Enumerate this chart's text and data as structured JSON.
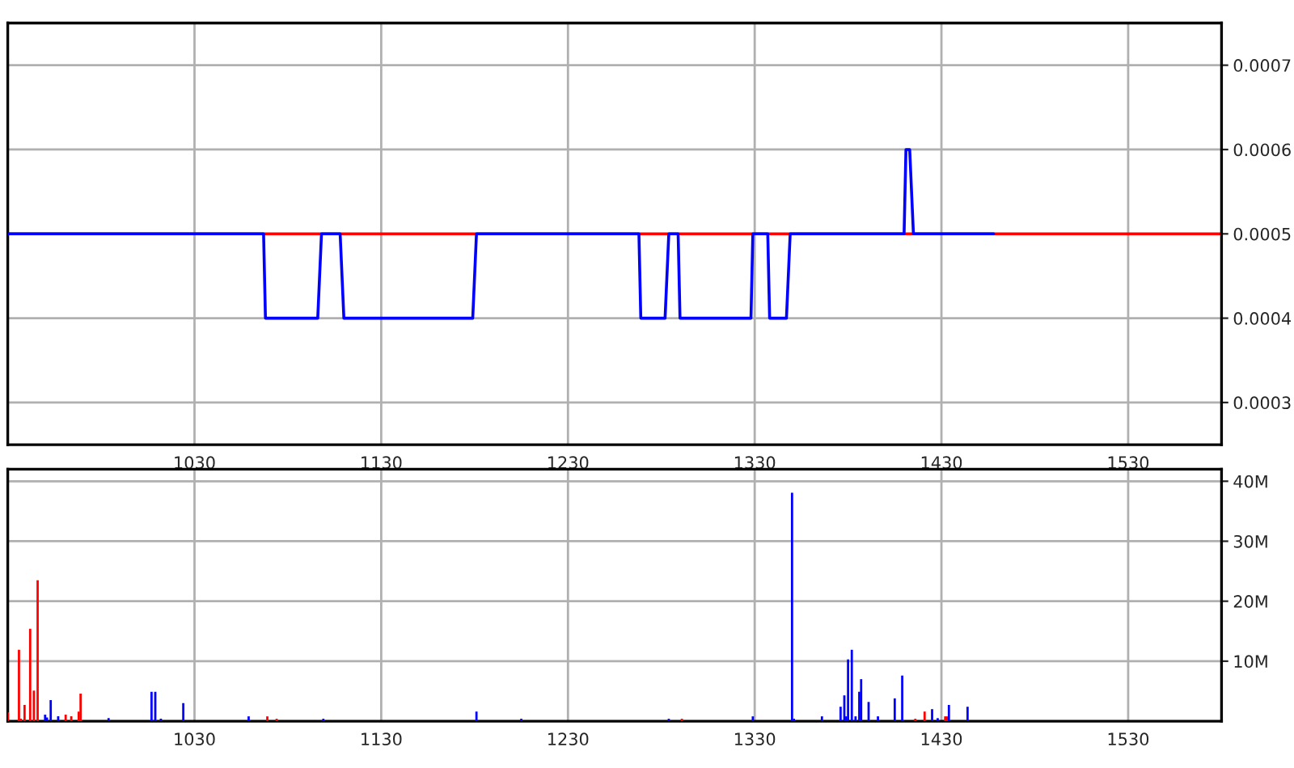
{
  "chart_data": [
    {
      "type": "line",
      "x": [
        930,
        1067,
        1068,
        1096,
        1098,
        1108,
        1110,
        1179,
        1181,
        1268,
        1269,
        1282,
        1284,
        1289,
        1290,
        1328,
        1329,
        1337,
        1338,
        1347,
        1349,
        1410,
        1411,
        1413,
        1415,
        1458
      ],
      "series": [
        {
          "color": "#0000ff",
          "values": [
            0.0005,
            0.0005,
            0.0004,
            0.0004,
            0.0005,
            0.0005,
            0.0004,
            0.0004,
            0.0005,
            0.0005,
            0.0004,
            0.0004,
            0.0005,
            0.0005,
            0.0004,
            0.0004,
            0.0005,
            0.0005,
            0.0004,
            0.0004,
            0.0005,
            0.0005,
            0.0006,
            0.0006,
            0.0005,
            0.0005
          ]
        }
      ],
      "xlim": [
        930,
        1580
      ],
      "xticks": [
        1030,
        1130,
        1230,
        1330,
        1430,
        1530
      ],
      "ylim": [
        0.00025,
        0.00075
      ],
      "yticks": [
        0.0003,
        0.0004,
        0.0005,
        0.0006,
        0.0007
      ],
      "ref_lines": [
        {
          "axis": "y",
          "value": 0.0005,
          "color": "#ff0000"
        }
      ],
      "grid": true
    },
    {
      "type": "bar",
      "series": [
        {
          "color": "#ff0000",
          "x": [
            930,
            936,
            937,
            939,
            942,
            944,
            946,
            961,
            964,
            968,
            969,
            1069,
            1074,
            1291,
            1416,
            1421,
            1432,
            1433
          ],
          "values": [
            1500000.0,
            11900000.0,
            400000.0,
            2700000.0,
            15400000.0,
            5100000.0,
            23500000.0,
            1100000.0,
            800000.0,
            1600000.0,
            4600000.0,
            800000.0,
            400000.0,
            400000.0,
            400000.0,
            1600000.0,
            800000.0,
            800000.0
          ]
        },
        {
          "color": "#0000ff",
          "x": [
            950,
            951,
            953,
            957,
            984,
            1007,
            1009,
            1012,
            1024,
            1059,
            1099,
            1181,
            1205,
            1284,
            1329,
            1350,
            1351,
            1366,
            1376,
            1378,
            1379,
            1380,
            1382,
            1384,
            1386,
            1387,
            1391,
            1396,
            1405,
            1409,
            1425,
            1428,
            1434,
            1444
          ],
          "values": [
            1100000.0,
            600000.0,
            3500000.0,
            800000.0,
            500000.0,
            4900000.0,
            4900000.0,
            400000.0,
            3000000.0,
            800000.0,
            400000.0,
            1600000.0,
            400000.0,
            400000.0,
            800000.0,
            38100000.0,
            400000.0,
            800000.0,
            2400000.0,
            4300000.0,
            800000.0,
            10300000.0,
            11900000.0,
            800000.0,
            4900000.0,
            7000000.0,
            3200000.0,
            800000.0,
            3800000.0,
            7600000.0,
            2000000.0,
            500000.0,
            2700000.0,
            2400000.0
          ]
        }
      ],
      "xlim": [
        930,
        1580
      ],
      "xticks": [
        1030,
        1130,
        1230,
        1330,
        1430,
        1530
      ],
      "ylim": [
        0,
        42000000
      ],
      "yticks": [
        {
          "value": 10000000,
          "label": "10M"
        },
        {
          "value": 20000000,
          "label": "20M"
        },
        {
          "value": 30000000,
          "label": "30M"
        },
        {
          "value": 40000000,
          "label": "40M"
        }
      ],
      "grid": true
    }
  ]
}
